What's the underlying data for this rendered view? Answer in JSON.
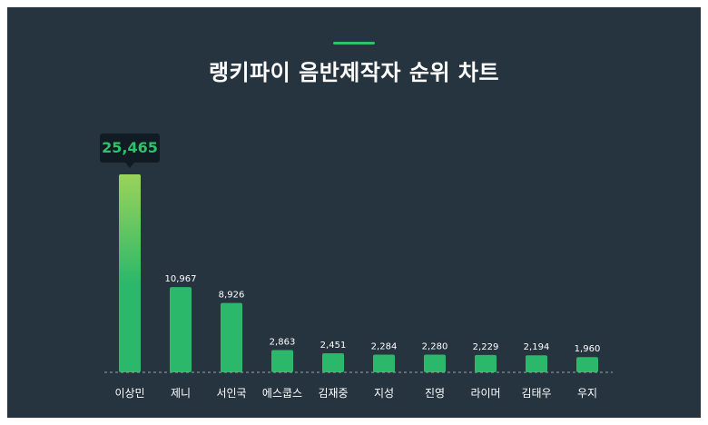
{
  "title": "랭키파이 음반제작자 순위 차트",
  "highlight": {
    "category": "이상민",
    "label": "25,465"
  },
  "colors": {
    "background": "#263440",
    "accent": "#2cc36b",
    "top_gradient_start": "#9ad35a",
    "bar": "#2cb86a",
    "text": "#ffffff",
    "baseline": "#9aa4ad",
    "tooltip_bg": "#101b24"
  },
  "chart_data": {
    "type": "bar",
    "title": "랭키파이 음반제작자 순위 차트",
    "categories": [
      "이상민",
      "제니",
      "서인국",
      "에스쿱스",
      "김재중",
      "지성",
      "진영",
      "라이머",
      "김태우",
      "우지"
    ],
    "values": [
      25465,
      10967,
      8926,
      2863,
      2451,
      2284,
      2280,
      2229,
      2194,
      1960
    ],
    "value_labels": [
      "25,465",
      "10,967",
      "8,926",
      "2,863",
      "2,451",
      "2,284",
      "2,280",
      "2,229",
      "2,194",
      "1,960"
    ],
    "xlabel": "",
    "ylabel": "",
    "ylim": [
      0,
      25465
    ],
    "grid": false,
    "legend": "none"
  }
}
